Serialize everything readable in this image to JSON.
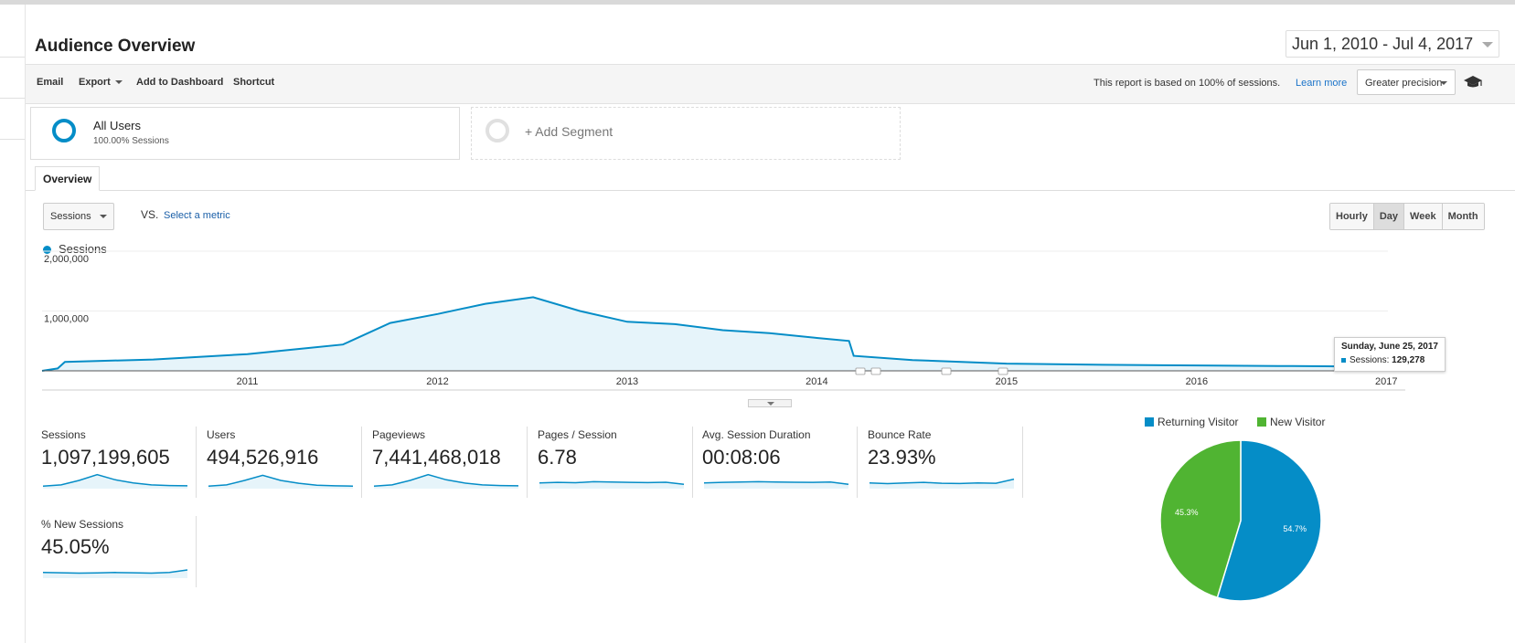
{
  "page": {
    "title": "Audience Overview",
    "date_range": "Jun 1, 2010 - Jul 4, 2017"
  },
  "toolbar": {
    "email": "Email",
    "export": "Export",
    "add_to_dashboard": "Add to Dashboard",
    "shortcut": "Shortcut",
    "sampling_text": "This report is based on 100% of sessions.",
    "learn_more": "Learn more",
    "precision": "Greater precision"
  },
  "segments": {
    "all_users": {
      "name": "All Users",
      "sub": "100.00% Sessions"
    },
    "add_segment": "+ Add Segment"
  },
  "tabs": {
    "overview": "Overview"
  },
  "metric_controls": {
    "metric": "Sessions",
    "vs": "VS.",
    "select_metric": "Select a metric",
    "timegroups": [
      "Hourly",
      "Day",
      "Week",
      "Month"
    ],
    "active_timegroup": "Day"
  },
  "colors": {
    "primary": "#058dc7",
    "area_fill": "#e6f4fa",
    "new_visitor": "#50b432",
    "link": "#1a73c9"
  },
  "chart_data": [
    {
      "type": "area",
      "series": [
        {
          "name": "Sessions"
        }
      ],
      "ylabels": [
        "2,000,000",
        "1,000,000"
      ],
      "ylim": [
        0,
        2000000
      ],
      "x_ticks": [
        "2011",
        "2012",
        "2013",
        "2014",
        "2015",
        "2016",
        "2017"
      ],
      "points": [
        {
          "x": "2010-06-01",
          "y": 0
        },
        {
          "x": "2010-07-01",
          "y": 40000
        },
        {
          "x": "2010-07-15",
          "y": 150000
        },
        {
          "x": "2011-01-01",
          "y": 190000
        },
        {
          "x": "2011-07-01",
          "y": 280000
        },
        {
          "x": "2012-01-01",
          "y": 440000
        },
        {
          "x": "2012-04-01",
          "y": 800000
        },
        {
          "x": "2012-07-01",
          "y": 950000
        },
        {
          "x": "2012-10-01",
          "y": 1120000
        },
        {
          "x": "2013-01-01",
          "y": 1230000
        },
        {
          "x": "2013-04-01",
          "y": 1000000
        },
        {
          "x": "2013-07-01",
          "y": 820000
        },
        {
          "x": "2013-10-01",
          "y": 780000
        },
        {
          "x": "2014-01-01",
          "y": 680000
        },
        {
          "x": "2014-04-01",
          "y": 630000
        },
        {
          "x": "2014-07-01",
          "y": 550000
        },
        {
          "x": "2014-09-01",
          "y": 500000
        },
        {
          "x": "2014-09-10",
          "y": 250000
        },
        {
          "x": "2015-01-01",
          "y": 180000
        },
        {
          "x": "2015-07-01",
          "y": 120000
        },
        {
          "x": "2016-01-01",
          "y": 100000
        },
        {
          "x": "2016-07-01",
          "y": 90000
        },
        {
          "x": "2017-01-01",
          "y": 80000
        },
        {
          "x": "2017-06-01",
          "y": 70000
        },
        {
          "x": "2017-06-25",
          "y": 129278
        }
      ],
      "tooltip": {
        "date": "Sunday, June 25, 2017",
        "series": "Sessions",
        "value": "129,278"
      }
    },
    {
      "type": "pie",
      "categories": [
        "Returning Visitor",
        "New Visitor"
      ],
      "values": [
        54.7,
        45.3
      ],
      "labels": [
        "54.7%",
        "45.3%"
      ],
      "colors": [
        "#058dc7",
        "#50b432"
      ]
    }
  ],
  "scorecards": [
    {
      "label": "Sessions",
      "value": "1,097,199,605"
    },
    {
      "label": "Users",
      "value": "494,526,916"
    },
    {
      "label": "Pageviews",
      "value": "7,441,468,018"
    },
    {
      "label": "Pages / Session",
      "value": "6.78"
    },
    {
      "label": "Avg. Session Duration",
      "value": "00:08:06"
    },
    {
      "label": "Bounce Rate",
      "value": "23.93%"
    },
    {
      "label": "% New Sessions",
      "value": "45.05%"
    }
  ]
}
